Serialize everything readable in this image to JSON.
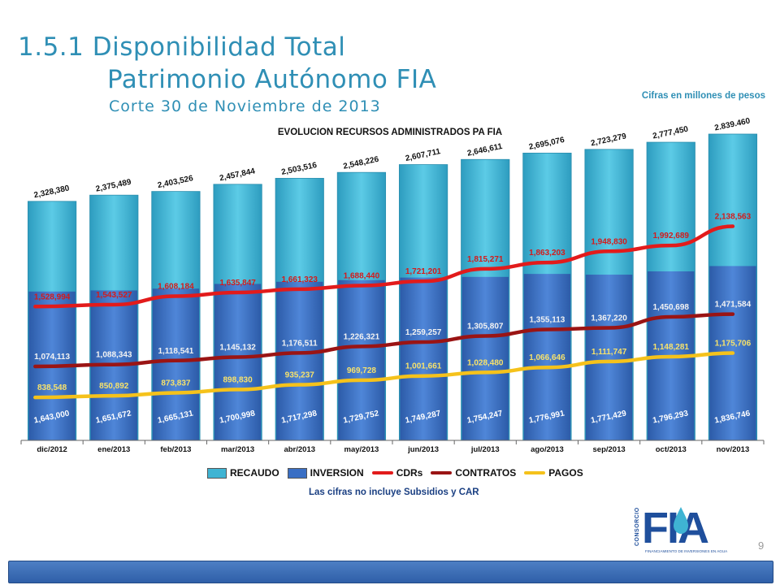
{
  "header": {
    "title_line1": "1.5.1 Disponibilidad Total",
    "title_line2": "Patrimonio Autónomo FIA",
    "title_line3": "Corte 30 de Noviembre de 2013",
    "note_units": "Cifras en millones de pesos"
  },
  "chart_data": {
    "type": "bar",
    "title": "EVOLUCION RECURSOS ADMINISTRADOS PA FIA",
    "categories": [
      "dic/2012",
      "ene/2013",
      "feb/2013",
      "mar/2013",
      "abr/2013",
      "may/2013",
      "jun/2013",
      "jul/2013",
      "ago/2013",
      "sep/2013",
      "oct/2013",
      "nov/2013"
    ],
    "bar_series": [
      {
        "name": "RECAUDO",
        "color": "#3fb4d3",
        "values": [
          2328380,
          2375489,
          2403526,
          2457844,
          2503516,
          2548226,
          2607711,
          2646611,
          2695076,
          2723279,
          2777450,
          2839460
        ],
        "labels": [
          "2,328,380",
          "2,375,489",
          "2,403,526",
          "2,457,844",
          "2,503,516",
          "2,548,226",
          "2,607,711",
          "2,646,611",
          "2,695,076",
          "2,723,279",
          "2,777,450",
          "2.839.460"
        ]
      },
      {
        "name": "INVERSION",
        "color": "#3a6fc4",
        "values": [
          1643000,
          1651672,
          1665131,
          1700998,
          1717298,
          1729752,
          1749287,
          1754247,
          1776991,
          1771429,
          1796293,
          1836746
        ],
        "labels": [
          "1,643,000",
          "1,651,672",
          "1,665,131",
          "1,700,998",
          "1,717,298",
          "1,729,752",
          "1,749,287",
          "1,754,247",
          "1,776,991",
          "1,771,429",
          "1,796,293",
          "1,836,746"
        ]
      }
    ],
    "line_series": [
      {
        "name": "CDRs",
        "color": "#e21b1b",
        "values": [
          1528994,
          1543527,
          1608184,
          1635847,
          1661323,
          1688440,
          1721201,
          1815271,
          1863203,
          1948830,
          1992689,
          2138563
        ],
        "labels": [
          "1,528,994",
          "1,543,527",
          "1,608,184",
          "1,635,847",
          "1,661,323",
          "1,688,440",
          "1,721,201",
          "1,815,271",
          "1,863,203",
          "1,948,830",
          "1,992,689",
          "2,138,563"
        ]
      },
      {
        "name": "CONTRATOS",
        "color": "#9a1414",
        "values": [
          1074113,
          1088343,
          1118541,
          1145132,
          1176511,
          1226321,
          1259257,
          1305807,
          1355113,
          1367220,
          1450698,
          1471584
        ],
        "labels": [
          "1,074,113",
          "1,088,343",
          "1,118,541",
          "1,145,132",
          "1,176,511",
          "1,226,321",
          "1,259,257",
          "1,305,807",
          "1,355,113",
          "1,367,220",
          "1,450,698",
          "1,471,584"
        ]
      },
      {
        "name": "PAGOS",
        "color": "#f5c21b",
        "values": [
          838548,
          850892,
          873837,
          898830,
          935237,
          969728,
          1001661,
          1028480,
          1066646,
          1111747,
          1148281,
          1175706
        ],
        "labels": [
          "838,548",
          "850,892",
          "873,837",
          "898,830",
          "935,237",
          "969,728",
          "1,001,661",
          "1,028,480",
          "1,066,646",
          "1,111,747",
          "1,148,281",
          "1,175,706"
        ]
      }
    ],
    "footnote": "Las cifras no incluye Subsidios y CAR",
    "legend_position": "bottom",
    "grid": false
  },
  "logo": {
    "side_text": "CONSORCIO",
    "letters": "FIA",
    "tagline": "FINANCIAMIENTO DE INVERSIONES EN AGUA"
  },
  "page_number": "9"
}
